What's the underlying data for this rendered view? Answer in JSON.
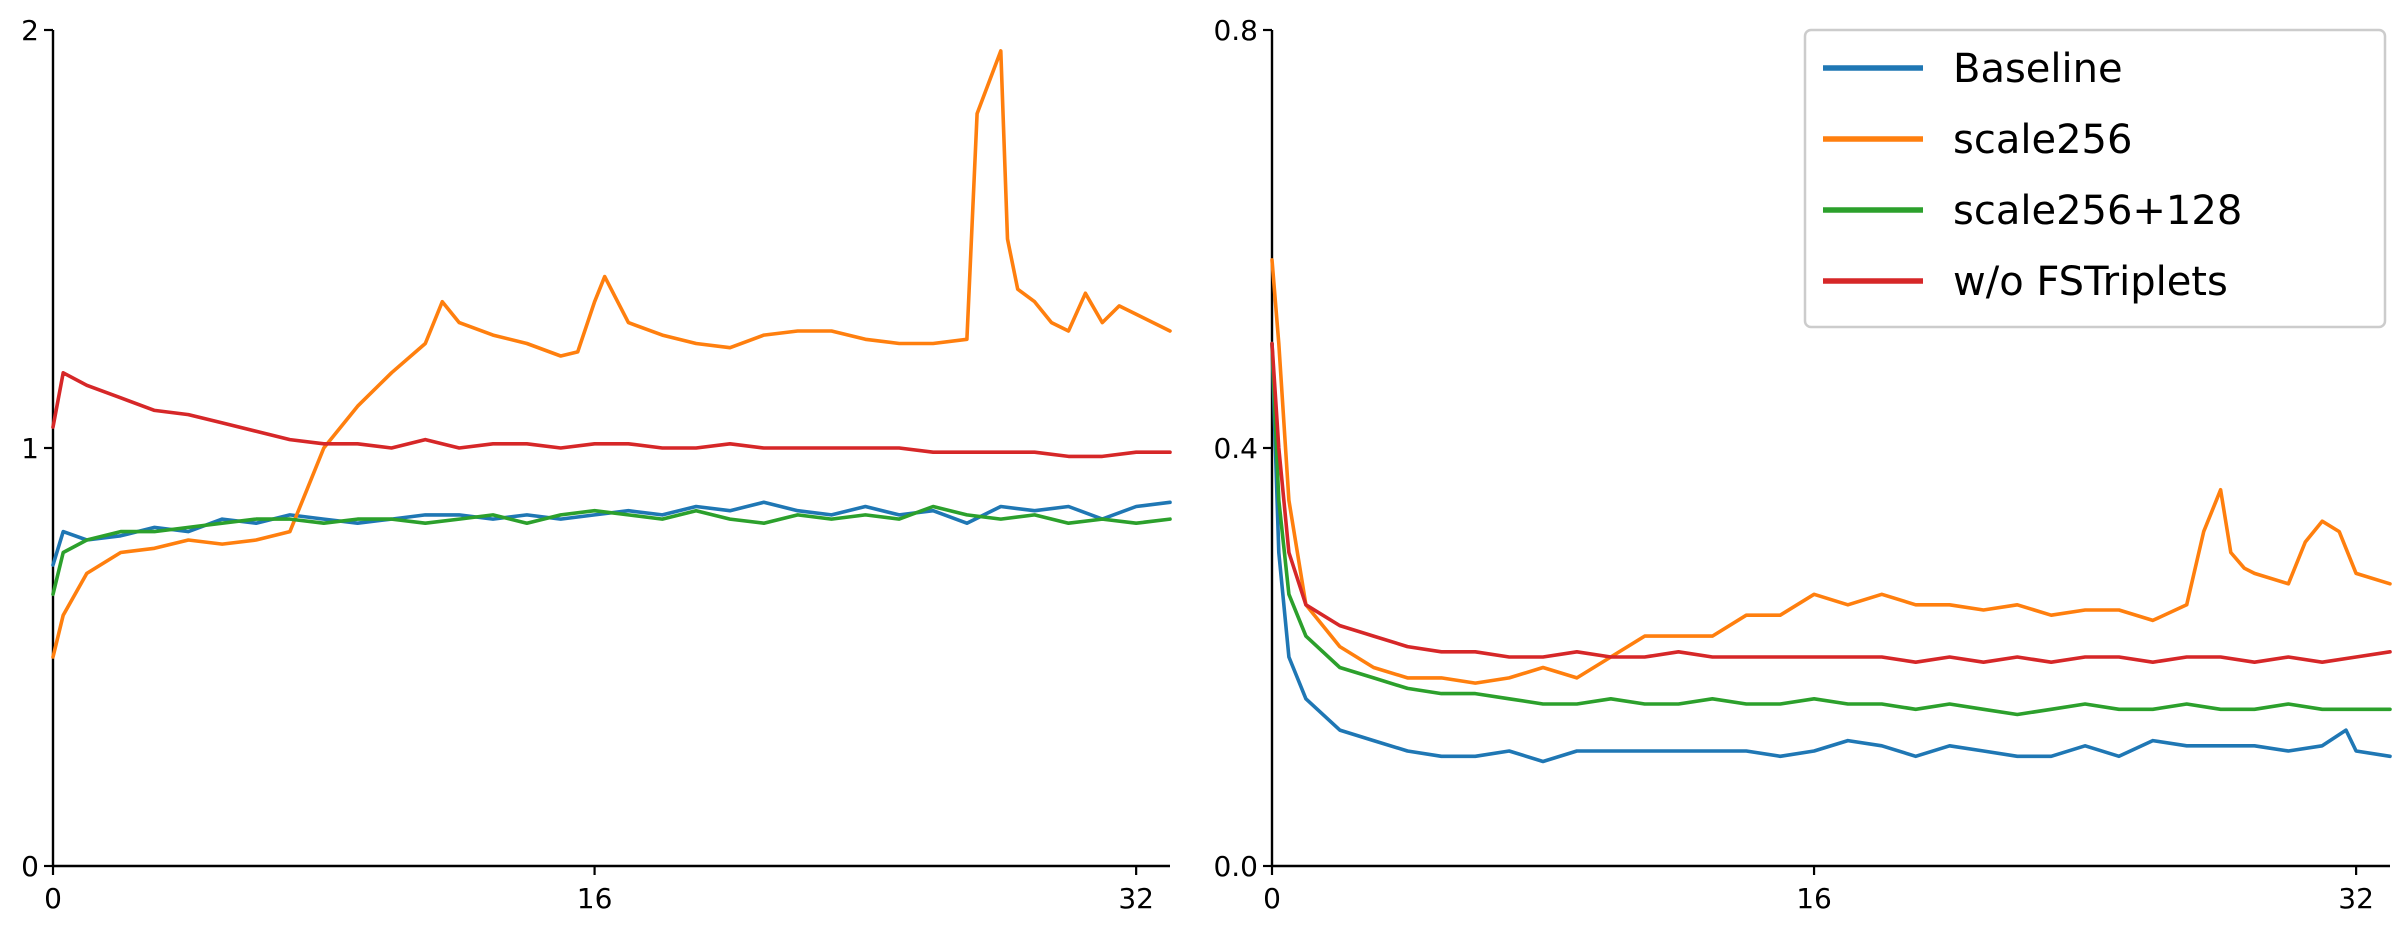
{
  "chart_data": [
    {
      "type": "line",
      "title": "",
      "xlabel": "",
      "ylabel": "",
      "xlim": [
        0,
        33
      ],
      "ylim": [
        0,
        2
      ],
      "xticks": [
        0,
        16,
        32
      ],
      "xtick_labels": [
        "0",
        "16",
        "32"
      ],
      "yticks": [
        0,
        1,
        2
      ],
      "ytick_labels": [
        "0",
        "1",
        "2"
      ],
      "grid": false,
      "legend": null,
      "series": [
        {
          "name": "Baseline",
          "color": "#1f77b4",
          "x": [
            0,
            0.3,
            1,
            2,
            3,
            4,
            5,
            6,
            7,
            8,
            9,
            10,
            11,
            12,
            13,
            14,
            15,
            16,
            17,
            18,
            19,
            20,
            21,
            22,
            23,
            24,
            25,
            26,
            27,
            28,
            29,
            30,
            31,
            32,
            33
          ],
          "y": [
            0.72,
            0.8,
            0.78,
            0.79,
            0.81,
            0.8,
            0.83,
            0.82,
            0.84,
            0.83,
            0.82,
            0.83,
            0.84,
            0.84,
            0.83,
            0.84,
            0.83,
            0.84,
            0.85,
            0.84,
            0.86,
            0.85,
            0.87,
            0.85,
            0.84,
            0.86,
            0.84,
            0.85,
            0.82,
            0.86,
            0.85,
            0.86,
            0.83,
            0.86,
            0.87
          ]
        },
        {
          "name": "scale256",
          "color": "#ff7f0e",
          "x": [
            0,
            0.3,
            1,
            2,
            3,
            4,
            5,
            6,
            7,
            7.5,
            8,
            9,
            10,
            11,
            11.5,
            12,
            13,
            14,
            15,
            15.5,
            16,
            16.3,
            17,
            18,
            19,
            20,
            21,
            22,
            23,
            24,
            25,
            26,
            27,
            27.3,
            28,
            28.2,
            28.5,
            29,
            29.5,
            30,
            30.5,
            31,
            31.5,
            32,
            33
          ],
          "y": [
            0.5,
            0.6,
            0.7,
            0.75,
            0.76,
            0.78,
            0.77,
            0.78,
            0.8,
            0.9,
            1.0,
            1.1,
            1.18,
            1.25,
            1.35,
            1.3,
            1.27,
            1.25,
            1.22,
            1.23,
            1.35,
            1.41,
            1.3,
            1.27,
            1.25,
            1.24,
            1.27,
            1.28,
            1.28,
            1.26,
            1.25,
            1.25,
            1.26,
            1.8,
            1.95,
            1.5,
            1.38,
            1.35,
            1.3,
            1.28,
            1.37,
            1.3,
            1.34,
            1.32,
            1.28
          ]
        },
        {
          "name": "scale256+128",
          "color": "#2ca02c",
          "x": [
            0,
            0.3,
            1,
            2,
            3,
            4,
            5,
            6,
            7,
            8,
            9,
            10,
            11,
            12,
            13,
            14,
            15,
            16,
            17,
            18,
            19,
            20,
            21,
            22,
            23,
            24,
            25,
            26,
            27,
            28,
            29,
            30,
            31,
            32,
            33
          ],
          "y": [
            0.65,
            0.75,
            0.78,
            0.8,
            0.8,
            0.81,
            0.82,
            0.83,
            0.83,
            0.82,
            0.83,
            0.83,
            0.82,
            0.83,
            0.84,
            0.82,
            0.84,
            0.85,
            0.84,
            0.83,
            0.85,
            0.83,
            0.82,
            0.84,
            0.83,
            0.84,
            0.83,
            0.86,
            0.84,
            0.83,
            0.84,
            0.82,
            0.83,
            0.82,
            0.83
          ]
        },
        {
          "name": "w/o FSTriplets",
          "color": "#d62728",
          "x": [
            0,
            0.3,
            1,
            2,
            3,
            4,
            5,
            6,
            7,
            8,
            9,
            10,
            11,
            12,
            13,
            14,
            15,
            16,
            17,
            18,
            19,
            20,
            21,
            22,
            23,
            24,
            25,
            26,
            27,
            28,
            29,
            30,
            31,
            32,
            33
          ],
          "y": [
            1.05,
            1.18,
            1.15,
            1.12,
            1.09,
            1.08,
            1.06,
            1.04,
            1.02,
            1.01,
            1.01,
            1.0,
            1.02,
            1.0,
            1.01,
            1.01,
            1.0,
            1.01,
            1.01,
            1.0,
            1.0,
            1.01,
            1.0,
            1.0,
            1.0,
            1.0,
            1.0,
            0.99,
            0.99,
            0.99,
            0.99,
            0.98,
            0.98,
            0.99,
            0.99
          ]
        }
      ]
    },
    {
      "type": "line",
      "title": "",
      "xlabel": "",
      "ylabel": "",
      "xlim": [
        0,
        33
      ],
      "ylim": [
        0,
        0.8
      ],
      "xticks": [
        0,
        16,
        32
      ],
      "xtick_labels": [
        "0",
        "16",
        "32"
      ],
      "yticks": [
        0,
        0.4,
        0.8
      ],
      "ytick_labels": [
        "0.0",
        "0.4",
        "0.8"
      ],
      "grid": false,
      "legend": {
        "position": "top-right",
        "entries": [
          "Baseline",
          "scale256",
          "scale256+128",
          "w/o FSTriplets"
        ]
      },
      "series": [
        {
          "name": "Baseline",
          "color": "#1f77b4",
          "x": [
            0,
            0.2,
            0.5,
            1,
            2,
            3,
            4,
            5,
            6,
            7,
            8,
            9,
            10,
            11,
            12,
            13,
            14,
            15,
            16,
            17,
            18,
            19,
            20,
            21,
            22,
            23,
            24,
            25,
            26,
            27,
            28,
            29,
            30,
            31,
            31.7,
            32,
            33
          ],
          "y": [
            0.5,
            0.3,
            0.2,
            0.16,
            0.13,
            0.12,
            0.11,
            0.105,
            0.105,
            0.11,
            0.1,
            0.11,
            0.11,
            0.11,
            0.11,
            0.11,
            0.11,
            0.105,
            0.11,
            0.12,
            0.115,
            0.105,
            0.115,
            0.11,
            0.105,
            0.105,
            0.115,
            0.105,
            0.12,
            0.115,
            0.115,
            0.115,
            0.11,
            0.115,
            0.13,
            0.11,
            0.105
          ]
        },
        {
          "name": "scale256",
          "color": "#ff7f0e",
          "x": [
            0,
            0.2,
            0.5,
            1,
            2,
            3,
            4,
            5,
            6,
            7,
            8,
            9,
            10,
            11,
            12,
            13,
            14,
            15,
            16,
            17,
            18,
            19,
            20,
            21,
            22,
            23,
            24,
            25,
            26,
            27,
            27.5,
            28,
            28.3,
            28.7,
            29,
            30,
            30.5,
            31,
            31.5,
            32,
            33
          ],
          "y": [
            0.58,
            0.5,
            0.35,
            0.25,
            0.21,
            0.19,
            0.18,
            0.18,
            0.175,
            0.18,
            0.19,
            0.18,
            0.2,
            0.22,
            0.22,
            0.22,
            0.24,
            0.24,
            0.26,
            0.25,
            0.26,
            0.25,
            0.25,
            0.245,
            0.25,
            0.24,
            0.245,
            0.245,
            0.235,
            0.25,
            0.32,
            0.36,
            0.3,
            0.285,
            0.28,
            0.27,
            0.31,
            0.33,
            0.32,
            0.28,
            0.27
          ]
        },
        {
          "name": "scale256+128",
          "color": "#2ca02c",
          "x": [
            0,
            0.2,
            0.5,
            1,
            2,
            3,
            4,
            5,
            6,
            7,
            8,
            9,
            10,
            11,
            12,
            13,
            14,
            15,
            16,
            17,
            18,
            19,
            20,
            21,
            22,
            23,
            24,
            25,
            26,
            27,
            28,
            29,
            30,
            31,
            32,
            33
          ],
          "y": [
            0.5,
            0.35,
            0.26,
            0.22,
            0.19,
            0.18,
            0.17,
            0.165,
            0.165,
            0.16,
            0.155,
            0.155,
            0.16,
            0.155,
            0.155,
            0.16,
            0.155,
            0.155,
            0.16,
            0.155,
            0.155,
            0.15,
            0.155,
            0.15,
            0.145,
            0.15,
            0.155,
            0.15,
            0.15,
            0.155,
            0.15,
            0.15,
            0.155,
            0.15,
            0.15,
            0.15
          ]
        },
        {
          "name": "w/o FSTriplets",
          "color": "#d62728",
          "x": [
            0,
            0.2,
            0.5,
            1,
            2,
            3,
            4,
            5,
            6,
            7,
            8,
            9,
            10,
            11,
            12,
            13,
            14,
            15,
            16,
            17,
            18,
            19,
            20,
            21,
            22,
            23,
            24,
            25,
            26,
            27,
            28,
            29,
            30,
            31,
            32,
            33
          ],
          "y": [
            0.5,
            0.4,
            0.3,
            0.25,
            0.23,
            0.22,
            0.21,
            0.205,
            0.205,
            0.2,
            0.2,
            0.205,
            0.2,
            0.2,
            0.205,
            0.2,
            0.2,
            0.2,
            0.2,
            0.2,
            0.2,
            0.195,
            0.2,
            0.195,
            0.2,
            0.195,
            0.2,
            0.2,
            0.195,
            0.2,
            0.2,
            0.195,
            0.2,
            0.195,
            0.2,
            0.205
          ]
        }
      ]
    }
  ]
}
